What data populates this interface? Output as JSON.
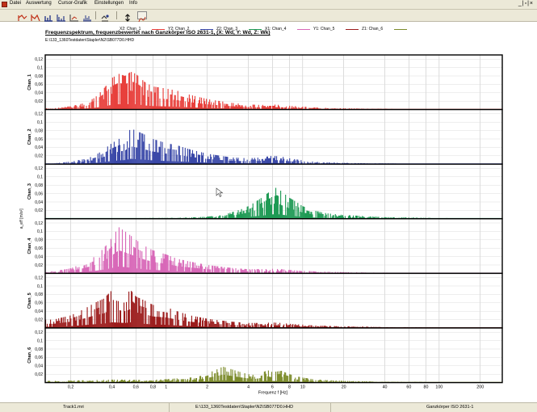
{
  "menu": {
    "items": [
      "Datei",
      "Auswertung",
      "Cursor-Grafik",
      "Einstellungen",
      "Info"
    ],
    "window_controls": "_|▫|×"
  },
  "toolbar": {
    "buttons": [
      {
        "name": "overlay-chart-icon"
      },
      {
        "name": "mark-chart-icon"
      },
      {
        "name": "bar-chart-icon"
      },
      {
        "name": "bar-chart-alt-icon"
      },
      {
        "name": "axis-chart-icon"
      },
      {
        "name": "peak-chart-icon"
      },
      {
        "name": "zoom-icon"
      },
      {
        "name": "arrow-updown-icon"
      },
      {
        "name": "curve-icon"
      }
    ]
  },
  "header": {
    "title": "Frequenzspektrum, frequenzbewertet nach Ganzkörper    ISO 2631-1, (X: Wd, Y: Wd, Z: Wk)",
    "path": "E:\\133_1360Testdaten\\Stapler\\N2\\SB077D0.HHD"
  },
  "legend": [
    {
      "label": "X2: Chan_1",
      "color": "#e8403c"
    },
    {
      "label": "Y2: Chan_2",
      "color": "#3a48a8"
    },
    {
      "label": "Z2: Chan_3",
      "color": "#1f9a55"
    },
    {
      "label": "X1: Chan_4",
      "color": "#d868b8"
    },
    {
      "label": "Y1: Chan_5",
      "color": "#9c1c1c"
    },
    {
      "label": "Z1: Chan_6",
      "color": "#7d8c2c"
    }
  ],
  "chart_data": {
    "type": "area",
    "xlabel": "Frequenz f [Hz]",
    "ylabel": "a_eff   [m/s²]",
    "x_scale": "log",
    "xlim": [
      0.13,
      290
    ],
    "ylim": [
      0,
      0.13
    ],
    "grid": true,
    "xticks": [
      {
        "v": 0.2,
        "label": "0,2"
      },
      {
        "v": 0.4,
        "label": "0,4"
      },
      {
        "v": 0.6,
        "label": "0,6"
      },
      {
        "v": 0.8,
        "label": "0,8"
      },
      {
        "v": 1,
        "label": "1"
      },
      {
        "v": 2,
        "label": "2"
      },
      {
        "v": 4,
        "label": "4"
      },
      {
        "v": 6,
        "label": "6"
      },
      {
        "v": 8,
        "label": "8"
      },
      {
        "v": 10,
        "label": "10"
      },
      {
        "v": 20,
        "label": "20"
      },
      {
        "v": 40,
        "label": "40"
      },
      {
        "v": 60,
        "label": "60"
      },
      {
        "v": 80,
        "label": "80"
      },
      {
        "v": 100,
        "label": "100"
      },
      {
        "v": 200,
        "label": "200"
      }
    ],
    "yticks": [
      {
        "v": 0.02,
        "label": "0,02"
      },
      {
        "v": 0.04,
        "label": "0,04"
      },
      {
        "v": 0.06,
        "label": "0,06"
      },
      {
        "v": 0.08,
        "label": "0,08"
      },
      {
        "v": 0.1,
        "label": "0,1"
      },
      {
        "v": 0.12,
        "label": "0,12"
      }
    ],
    "series": [
      {
        "name": "Chan_1",
        "color": "#e8403c",
        "x": [
          0.15,
          0.2,
          0.25,
          0.3,
          0.35,
          0.4,
          0.45,
          0.5,
          0.55,
          0.6,
          0.7,
          0.8,
          1,
          1.2,
          1.5,
          2,
          2.5,
          3,
          4,
          5,
          6,
          7,
          8,
          10,
          12,
          15,
          20,
          30,
          40,
          60,
          100,
          200
        ],
        "y": [
          0.003,
          0.008,
          0.015,
          0.028,
          0.05,
          0.075,
          0.085,
          0.08,
          0.09,
          0.085,
          0.065,
          0.055,
          0.05,
          0.045,
          0.035,
          0.025,
          0.02,
          0.016,
          0.012,
          0.011,
          0.012,
          0.011,
          0.009,
          0.007,
          0.005,
          0.004,
          0.003,
          0.002,
          0.002,
          0.001,
          0.001,
          0.001
        ]
      },
      {
        "name": "Chan_2",
        "color": "#3a48a8",
        "x": [
          0.15,
          0.2,
          0.25,
          0.3,
          0.35,
          0.4,
          0.45,
          0.5,
          0.55,
          0.6,
          0.7,
          0.8,
          1,
          1.2,
          1.5,
          2,
          2.5,
          3,
          4,
          5,
          6,
          7,
          8,
          10,
          12,
          15,
          20,
          30,
          40,
          60,
          100,
          200
        ],
        "y": [
          0.002,
          0.006,
          0.012,
          0.02,
          0.035,
          0.05,
          0.06,
          0.065,
          0.085,
          0.08,
          0.07,
          0.06,
          0.05,
          0.045,
          0.035,
          0.025,
          0.02,
          0.016,
          0.014,
          0.016,
          0.02,
          0.018,
          0.014,
          0.009,
          0.006,
          0.004,
          0.003,
          0.002,
          0.002,
          0.001,
          0.001,
          0.001
        ]
      },
      {
        "name": "Chan_3",
        "color": "#1f9a55",
        "x": [
          0.15,
          0.2,
          0.3,
          0.5,
          0.8,
          1,
          1.5,
          2,
          2.5,
          3,
          3.5,
          4,
          4.5,
          5,
          5.5,
          6,
          6.5,
          7,
          8,
          9,
          10,
          12,
          15,
          20,
          30,
          40,
          60,
          80,
          100,
          150,
          200
        ],
        "y": [
          0.001,
          0.001,
          0.001,
          0.001,
          0.002,
          0.002,
          0.003,
          0.005,
          0.008,
          0.015,
          0.022,
          0.03,
          0.04,
          0.05,
          0.06,
          0.07,
          0.075,
          0.065,
          0.05,
          0.04,
          0.03,
          0.02,
          0.013,
          0.009,
          0.006,
          0.004,
          0.003,
          0.002,
          0.002,
          0.001,
          0.001
        ]
      },
      {
        "name": "Chan_4",
        "color": "#d868b8",
        "x": [
          0.15,
          0.2,
          0.25,
          0.3,
          0.35,
          0.4,
          0.45,
          0.5,
          0.55,
          0.6,
          0.7,
          0.8,
          1,
          1.2,
          1.5,
          2,
          2.5,
          3,
          4,
          5,
          6,
          7,
          8,
          10,
          12,
          15,
          20,
          30,
          40,
          60,
          100,
          200
        ],
        "y": [
          0.005,
          0.012,
          0.025,
          0.04,
          0.06,
          0.085,
          0.11,
          0.1,
          0.09,
          0.08,
          0.065,
          0.055,
          0.045,
          0.035,
          0.028,
          0.02,
          0.016,
          0.013,
          0.01,
          0.01,
          0.011,
          0.01,
          0.008,
          0.006,
          0.005,
          0.004,
          0.003,
          0.002,
          0.002,
          0.001,
          0.001,
          0.001
        ]
      },
      {
        "name": "Chan_5",
        "color": "#9c1c1c",
        "x": [
          0.15,
          0.2,
          0.25,
          0.3,
          0.35,
          0.4,
          0.45,
          0.5,
          0.55,
          0.6,
          0.7,
          0.8,
          1,
          1.2,
          1.5,
          2,
          2.5,
          3,
          4,
          5,
          6,
          7,
          8,
          10,
          12,
          15,
          20,
          30,
          40,
          60,
          100,
          200
        ],
        "y": [
          0.02,
          0.03,
          0.045,
          0.06,
          0.07,
          0.09,
          0.085,
          0.08,
          0.09,
          0.075,
          0.065,
          0.055,
          0.05,
          0.04,
          0.03,
          0.022,
          0.018,
          0.015,
          0.012,
          0.012,
          0.013,
          0.012,
          0.01,
          0.008,
          0.006,
          0.005,
          0.004,
          0.003,
          0.002,
          0.002,
          0.001,
          0.001
        ]
      },
      {
        "name": "Chan_6",
        "color": "#7d8c2c",
        "x": [
          0.15,
          0.2,
          0.3,
          0.4,
          0.5,
          0.7,
          1,
          1.2,
          1.5,
          1.8,
          2,
          2.3,
          2.6,
          3,
          3.5,
          4,
          4.5,
          5,
          5.5,
          6,
          7,
          8,
          9,
          10,
          12,
          15,
          20,
          30,
          40,
          60,
          100,
          200
        ],
        "y": [
          0.004,
          0.005,
          0.006,
          0.007,
          0.007,
          0.006,
          0.008,
          0.01,
          0.012,
          0.016,
          0.022,
          0.03,
          0.038,
          0.032,
          0.025,
          0.02,
          0.018,
          0.022,
          0.03,
          0.025,
          0.028,
          0.02,
          0.015,
          0.012,
          0.008,
          0.006,
          0.004,
          0.003,
          0.002,
          0.002,
          0.001,
          0.001
        ]
      }
    ]
  },
  "status": {
    "cells": [
      "Track1.mri",
      "E:\\133_1360Testdaten\\Stapler\\N2\\SB077D0.HHD",
      "Ganzkörper   ISO 2631-1"
    ]
  }
}
